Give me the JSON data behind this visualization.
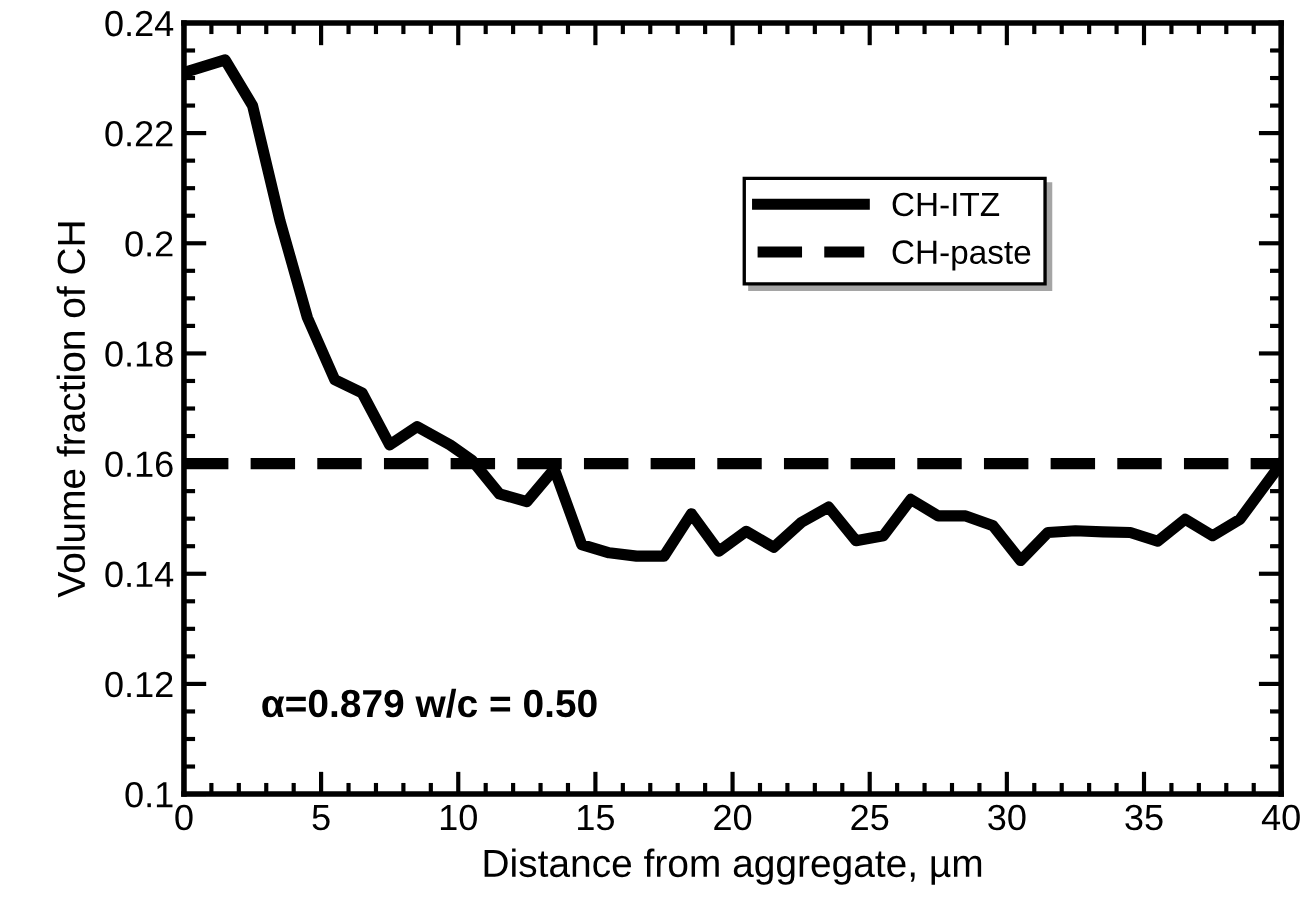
{
  "chart_data": {
    "type": "line",
    "xlabel": "Distance from aggregate, µm",
    "ylabel": "Volume fraction of CH",
    "xlim": [
      0,
      40
    ],
    "xticks": [
      0,
      5,
      10,
      15,
      20,
      25,
      30,
      35,
      40
    ],
    "ylim": [
      0.1,
      0.24
    ],
    "yticks": [
      0.1,
      0.12,
      0.14,
      0.16,
      0.18,
      0.2,
      0.22,
      0.24
    ],
    "legend": "top right",
    "grid": false,
    "annotations": [
      "α=0.879 w/c = 0.50"
    ],
    "series": [
      {
        "name": "CH-ITZ",
        "color": "#000000",
        "line_style": "solid",
        "x": [
          0,
          1.5,
          2.5,
          3.5,
          4.5,
          5.5,
          6.5,
          7.5,
          8.5,
          9.7,
          10.5,
          11.5,
          12.5,
          13.5,
          14.5,
          15.5,
          16.5,
          17.5,
          18.5,
          19.5,
          20.5,
          21.5,
          22.5,
          23.5,
          24.5,
          25.5,
          26.5,
          27.5,
          28.5,
          29.5,
          30.5,
          31.5,
          32.5,
          33.5,
          34.5,
          35.5,
          36.5,
          37.5,
          38.5,
          40
        ],
        "values": [
          0.231,
          0.2333,
          0.225,
          0.2041,
          0.1865,
          0.1752,
          0.1728,
          0.1634,
          0.1667,
          0.1634,
          0.1606,
          0.1545,
          0.1531,
          0.159,
          0.1453,
          0.1438,
          0.1432,
          0.1432,
          0.1509,
          0.1441,
          0.1477,
          0.1448,
          0.1493,
          0.1521,
          0.146,
          0.1469,
          0.1535,
          0.1505,
          0.1505,
          0.1487,
          0.1424,
          0.1475,
          0.1478,
          0.1476,
          0.1475,
          0.1459,
          0.1499,
          0.1469,
          0.1499,
          0.16
        ]
      },
      {
        "name": "CH-paste",
        "color": "#000000",
        "line_style": "dashed",
        "x": [
          0,
          40
        ],
        "values": [
          0.16,
          0.16
        ]
      }
    ]
  }
}
